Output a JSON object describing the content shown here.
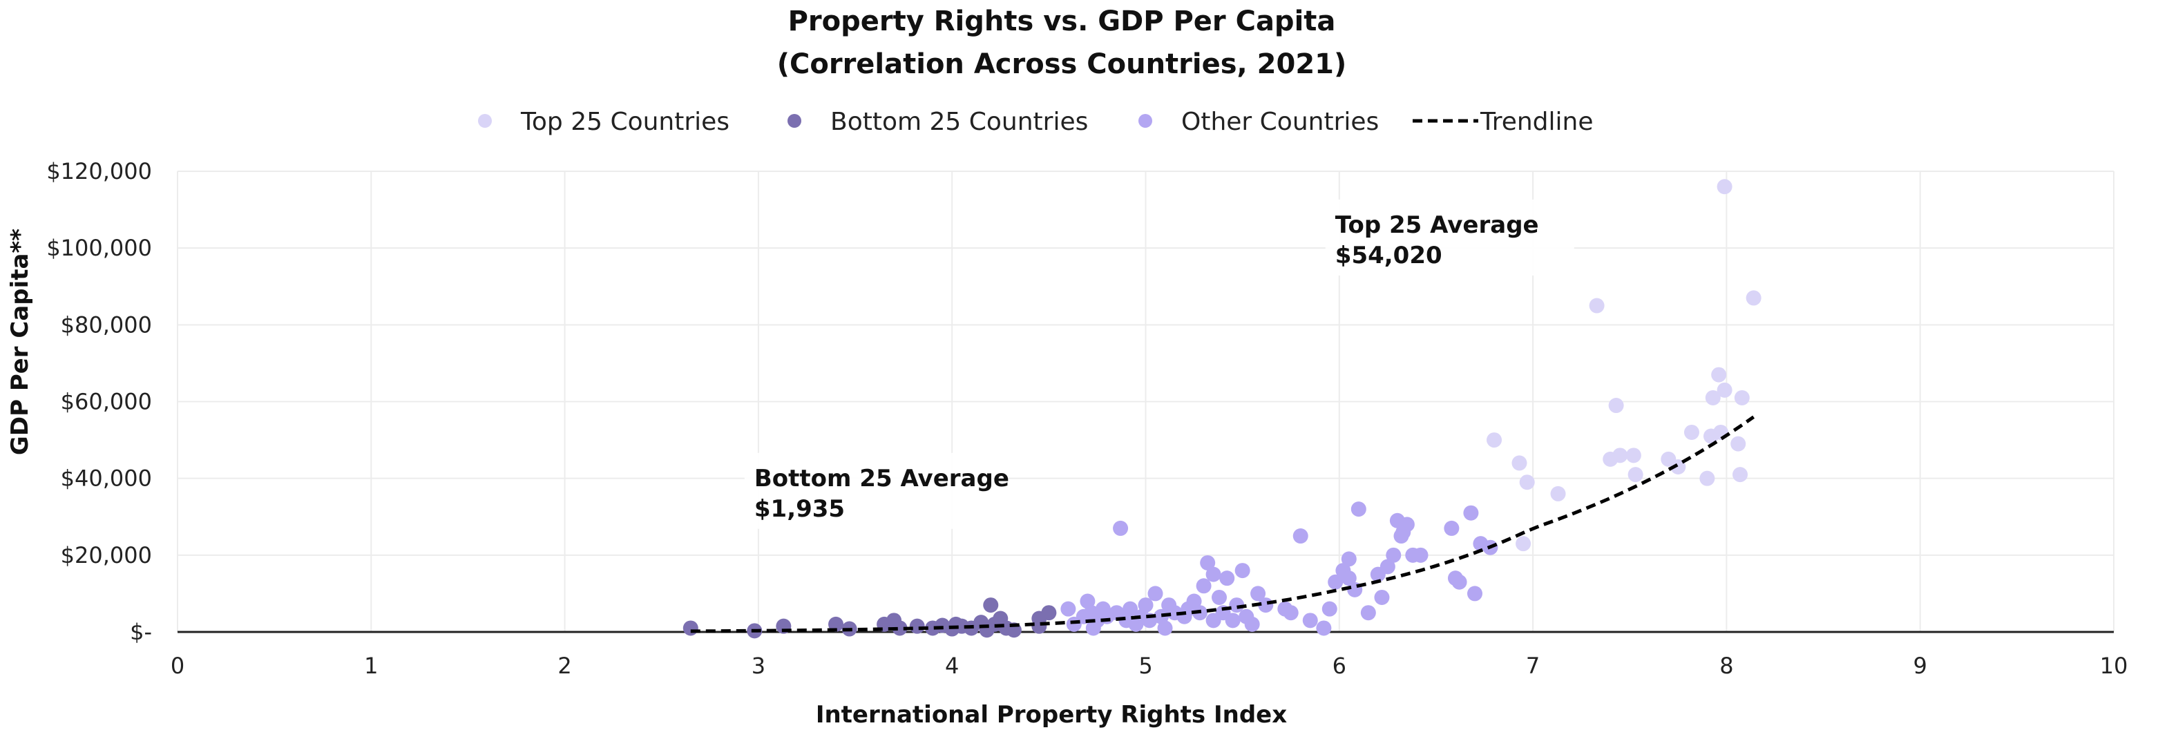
{
  "chart_data": {
    "type": "scatter",
    "title": [
      "Property Rights vs. GDP Per Capita",
      "(Correlation Across Countries, 2021)"
    ],
    "xlabel": "International Property Rights Index",
    "ylabel": "GDP Per Capita**",
    "xlim": [
      0,
      10
    ],
    "ylim": [
      0,
      120000
    ],
    "x_ticks": [
      0,
      1,
      2,
      3,
      4,
      5,
      6,
      7,
      8,
      9,
      10
    ],
    "x_tick_labels": [
      "0",
      "1",
      "2",
      "3",
      "4",
      "5",
      "6",
      "7",
      "8",
      "9",
      "10"
    ],
    "y_ticks": [
      0,
      20000,
      40000,
      60000,
      80000,
      100000,
      120000
    ],
    "y_tick_labels": [
      "$-",
      "$20,000",
      "$40,000",
      "$60,000",
      "$80,000",
      "$100,000",
      "$120,000"
    ],
    "grid": true,
    "legend_position": "top",
    "series": [
      {
        "name": "Top 25 Countries",
        "color": "#d9d4f7",
        "points": [
          [
            6.8,
            50000
          ],
          [
            6.93,
            44000
          ],
          [
            6.97,
            39000
          ],
          [
            6.95,
            23000
          ],
          [
            7.13,
            36000
          ],
          [
            7.33,
            85000
          ],
          [
            7.4,
            45000
          ],
          [
            7.45,
            46000
          ],
          [
            7.43,
            59000
          ],
          [
            7.52,
            46000
          ],
          [
            7.53,
            41000
          ],
          [
            7.75,
            43000
          ],
          [
            7.82,
            52000
          ],
          [
            7.9,
            40000
          ],
          [
            7.92,
            51000
          ],
          [
            7.93,
            61000
          ],
          [
            7.96,
            67000
          ],
          [
            7.97,
            52000
          ],
          [
            7.99,
            63000
          ],
          [
            7.99,
            116000
          ],
          [
            8.06,
            49000
          ],
          [
            8.07,
            41000
          ],
          [
            8.08,
            61000
          ],
          [
            8.14,
            87000
          ],
          [
            7.7,
            45000
          ]
        ]
      },
      {
        "name": "Bottom 25 Countries",
        "color": "#7b6fb0",
        "points": [
          [
            2.65,
            1000
          ],
          [
            2.98,
            300
          ],
          [
            3.13,
            1500
          ],
          [
            3.4,
            2000
          ],
          [
            3.47,
            800
          ],
          [
            3.65,
            2000
          ],
          [
            3.7,
            3000
          ],
          [
            3.73,
            1000
          ],
          [
            3.82,
            1500
          ],
          [
            3.9,
            1000
          ],
          [
            3.95,
            1700
          ],
          [
            4.0,
            800
          ],
          [
            4.05,
            1500
          ],
          [
            4.1,
            1000
          ],
          [
            4.15,
            2500
          ],
          [
            4.18,
            500
          ],
          [
            4.2,
            7000
          ],
          [
            4.22,
            2000
          ],
          [
            4.25,
            3500
          ],
          [
            4.28,
            1000
          ],
          [
            4.32,
            500
          ],
          [
            4.45,
            1500
          ],
          [
            4.45,
            3500
          ],
          [
            4.5,
            5000
          ],
          [
            4.02,
            2000
          ]
        ]
      },
      {
        "name": "Other Countries",
        "color": "#b3a6f2",
        "points": [
          [
            4.6,
            6000
          ],
          [
            4.63,
            2000
          ],
          [
            4.68,
            4000
          ],
          [
            4.7,
            8000
          ],
          [
            4.72,
            5000
          ],
          [
            4.73,
            1000
          ],
          [
            4.75,
            3000
          ],
          [
            4.78,
            6000
          ],
          [
            4.8,
            4000
          ],
          [
            4.85,
            5000
          ],
          [
            4.87,
            27000
          ],
          [
            4.92,
            6000
          ],
          [
            4.95,
            2000
          ],
          [
            4.98,
            4000
          ],
          [
            5.0,
            7000
          ],
          [
            5.02,
            3000
          ],
          [
            5.05,
            10000
          ],
          [
            5.08,
            4000
          ],
          [
            5.1,
            1000
          ],
          [
            5.12,
            7000
          ],
          [
            5.15,
            5000
          ],
          [
            5.2,
            4000
          ],
          [
            5.25,
            8000
          ],
          [
            5.28,
            5000
          ],
          [
            5.3,
            12000
          ],
          [
            5.32,
            18000
          ],
          [
            5.35,
            15000
          ],
          [
            5.38,
            9000
          ],
          [
            5.4,
            5000
          ],
          [
            5.42,
            14000
          ],
          [
            5.45,
            3000
          ],
          [
            5.47,
            7000
          ],
          [
            5.5,
            16000
          ],
          [
            5.52,
            4000
          ],
          [
            5.55,
            2000
          ],
          [
            5.58,
            10000
          ],
          [
            5.72,
            6000
          ],
          [
            5.75,
            5000
          ],
          [
            5.8,
            25000
          ],
          [
            5.85,
            3000
          ],
          [
            5.92,
            1000
          ],
          [
            5.95,
            6000
          ],
          [
            5.98,
            13000
          ],
          [
            6.02,
            16000
          ],
          [
            6.05,
            19000
          ],
          [
            6.08,
            11000
          ],
          [
            6.1,
            32000
          ],
          [
            6.15,
            5000
          ],
          [
            6.2,
            15000
          ],
          [
            6.22,
            9000
          ],
          [
            6.25,
            17000
          ],
          [
            6.28,
            20000
          ],
          [
            6.3,
            29000
          ],
          [
            6.32,
            25000
          ],
          [
            6.33,
            26000
          ],
          [
            6.35,
            28000
          ],
          [
            6.38,
            20000
          ],
          [
            6.42,
            20000
          ],
          [
            6.58,
            27000
          ],
          [
            6.6,
            14000
          ],
          [
            6.62,
            13000
          ],
          [
            6.68,
            31000
          ],
          [
            6.7,
            10000
          ],
          [
            6.73,
            23000
          ],
          [
            6.78,
            22000
          ],
          [
            6.05,
            14000
          ],
          [
            5.62,
            7000
          ],
          [
            5.22,
            6000
          ],
          [
            4.9,
            3000
          ],
          [
            5.35,
            3000
          ]
        ]
      }
    ],
    "trendline": {
      "name": "Trendline",
      "color": "#000000",
      "style": "dashed",
      "x_range": [
        2.65,
        8.14
      ],
      "model": "exponential",
      "points": [
        [
          2.65,
          200
        ],
        [
          4.0,
          1200
        ],
        [
          5.0,
          4000
        ],
        [
          6.0,
          11000
        ],
        [
          7.0,
          27000
        ],
        [
          8.14,
          56000
        ]
      ]
    },
    "annotations": [
      {
        "lines": [
          "Top 25 Average",
          "$54,020"
        ],
        "x": 6.0,
        "y": 104000
      },
      {
        "lines": [
          "Bottom 25 Average",
          "$1,935"
        ],
        "x": 3.0,
        "y": 38000
      }
    ]
  }
}
